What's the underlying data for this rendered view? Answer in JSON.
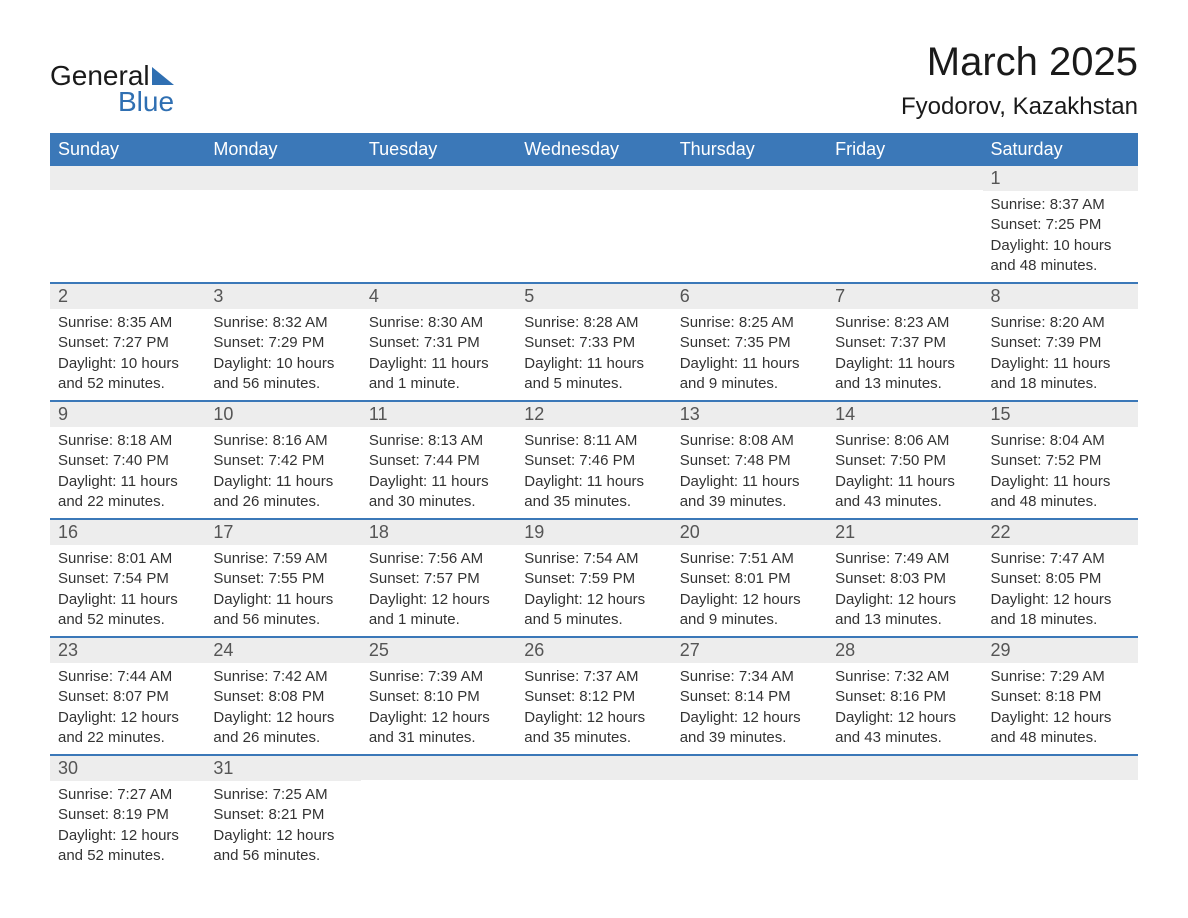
{
  "logo": {
    "text_general": "General",
    "text_blue": "Blue",
    "mark_color": "#2f6fb2"
  },
  "title": {
    "month": "March 2025",
    "location": "Fyodorov, Kazakhstan"
  },
  "colors": {
    "header_bg": "#3b78b8",
    "header_text": "#ffffff",
    "row_divider": "#3b78b8",
    "daynum_bg": "#ededed",
    "daynum_text": "#555555",
    "body_text": "#333333",
    "page_bg": "#ffffff"
  },
  "fonts": {
    "family": "Arial, Helvetica, sans-serif",
    "month_title_size_pt": 30,
    "location_size_pt": 18,
    "weekday_size_pt": 14,
    "daynum_size_pt": 14,
    "body_size_pt": 11
  },
  "weekdays": [
    "Sunday",
    "Monday",
    "Tuesday",
    "Wednesday",
    "Thursday",
    "Friday",
    "Saturday"
  ],
  "weeks": [
    [
      {
        "day": "",
        "lines": []
      },
      {
        "day": "",
        "lines": []
      },
      {
        "day": "",
        "lines": []
      },
      {
        "day": "",
        "lines": []
      },
      {
        "day": "",
        "lines": []
      },
      {
        "day": "",
        "lines": []
      },
      {
        "day": "1",
        "lines": [
          "Sunrise: 8:37 AM",
          "Sunset: 7:25 PM",
          "Daylight: 10 hours and 48 minutes."
        ]
      }
    ],
    [
      {
        "day": "2",
        "lines": [
          "Sunrise: 8:35 AM",
          "Sunset: 7:27 PM",
          "Daylight: 10 hours and 52 minutes."
        ]
      },
      {
        "day": "3",
        "lines": [
          "Sunrise: 8:32 AM",
          "Sunset: 7:29 PM",
          "Daylight: 10 hours and 56 minutes."
        ]
      },
      {
        "day": "4",
        "lines": [
          "Sunrise: 8:30 AM",
          "Sunset: 7:31 PM",
          "Daylight: 11 hours and 1 minute."
        ]
      },
      {
        "day": "5",
        "lines": [
          "Sunrise: 8:28 AM",
          "Sunset: 7:33 PM",
          "Daylight: 11 hours and 5 minutes."
        ]
      },
      {
        "day": "6",
        "lines": [
          "Sunrise: 8:25 AM",
          "Sunset: 7:35 PM",
          "Daylight: 11 hours and 9 minutes."
        ]
      },
      {
        "day": "7",
        "lines": [
          "Sunrise: 8:23 AM",
          "Sunset: 7:37 PM",
          "Daylight: 11 hours and 13 minutes."
        ]
      },
      {
        "day": "8",
        "lines": [
          "Sunrise: 8:20 AM",
          "Sunset: 7:39 PM",
          "Daylight: 11 hours and 18 minutes."
        ]
      }
    ],
    [
      {
        "day": "9",
        "lines": [
          "Sunrise: 8:18 AM",
          "Sunset: 7:40 PM",
          "Daylight: 11 hours and 22 minutes."
        ]
      },
      {
        "day": "10",
        "lines": [
          "Sunrise: 8:16 AM",
          "Sunset: 7:42 PM",
          "Daylight: 11 hours and 26 minutes."
        ]
      },
      {
        "day": "11",
        "lines": [
          "Sunrise: 8:13 AM",
          "Sunset: 7:44 PM",
          "Daylight: 11 hours and 30 minutes."
        ]
      },
      {
        "day": "12",
        "lines": [
          "Sunrise: 8:11 AM",
          "Sunset: 7:46 PM",
          "Daylight: 11 hours and 35 minutes."
        ]
      },
      {
        "day": "13",
        "lines": [
          "Sunrise: 8:08 AM",
          "Sunset: 7:48 PM",
          "Daylight: 11 hours and 39 minutes."
        ]
      },
      {
        "day": "14",
        "lines": [
          "Sunrise: 8:06 AM",
          "Sunset: 7:50 PM",
          "Daylight: 11 hours and 43 minutes."
        ]
      },
      {
        "day": "15",
        "lines": [
          "Sunrise: 8:04 AM",
          "Sunset: 7:52 PM",
          "Daylight: 11 hours and 48 minutes."
        ]
      }
    ],
    [
      {
        "day": "16",
        "lines": [
          "Sunrise: 8:01 AM",
          "Sunset: 7:54 PM",
          "Daylight: 11 hours and 52 minutes."
        ]
      },
      {
        "day": "17",
        "lines": [
          "Sunrise: 7:59 AM",
          "Sunset: 7:55 PM",
          "Daylight: 11 hours and 56 minutes."
        ]
      },
      {
        "day": "18",
        "lines": [
          "Sunrise: 7:56 AM",
          "Sunset: 7:57 PM",
          "Daylight: 12 hours and 1 minute."
        ]
      },
      {
        "day": "19",
        "lines": [
          "Sunrise: 7:54 AM",
          "Sunset: 7:59 PM",
          "Daylight: 12 hours and 5 minutes."
        ]
      },
      {
        "day": "20",
        "lines": [
          "Sunrise: 7:51 AM",
          "Sunset: 8:01 PM",
          "Daylight: 12 hours and 9 minutes."
        ]
      },
      {
        "day": "21",
        "lines": [
          "Sunrise: 7:49 AM",
          "Sunset: 8:03 PM",
          "Daylight: 12 hours and 13 minutes."
        ]
      },
      {
        "day": "22",
        "lines": [
          "Sunrise: 7:47 AM",
          "Sunset: 8:05 PM",
          "Daylight: 12 hours and 18 minutes."
        ]
      }
    ],
    [
      {
        "day": "23",
        "lines": [
          "Sunrise: 7:44 AM",
          "Sunset: 8:07 PM",
          "Daylight: 12 hours and 22 minutes."
        ]
      },
      {
        "day": "24",
        "lines": [
          "Sunrise: 7:42 AM",
          "Sunset: 8:08 PM",
          "Daylight: 12 hours and 26 minutes."
        ]
      },
      {
        "day": "25",
        "lines": [
          "Sunrise: 7:39 AM",
          "Sunset: 8:10 PM",
          "Daylight: 12 hours and 31 minutes."
        ]
      },
      {
        "day": "26",
        "lines": [
          "Sunrise: 7:37 AM",
          "Sunset: 8:12 PM",
          "Daylight: 12 hours and 35 minutes."
        ]
      },
      {
        "day": "27",
        "lines": [
          "Sunrise: 7:34 AM",
          "Sunset: 8:14 PM",
          "Daylight: 12 hours and 39 minutes."
        ]
      },
      {
        "day": "28",
        "lines": [
          "Sunrise: 7:32 AM",
          "Sunset: 8:16 PM",
          "Daylight: 12 hours and 43 minutes."
        ]
      },
      {
        "day": "29",
        "lines": [
          "Sunrise: 7:29 AM",
          "Sunset: 8:18 PM",
          "Daylight: 12 hours and 48 minutes."
        ]
      }
    ],
    [
      {
        "day": "30",
        "lines": [
          "Sunrise: 7:27 AM",
          "Sunset: 8:19 PM",
          "Daylight: 12 hours and 52 minutes."
        ]
      },
      {
        "day": "31",
        "lines": [
          "Sunrise: 7:25 AM",
          "Sunset: 8:21 PM",
          "Daylight: 12 hours and 56 minutes."
        ]
      },
      {
        "day": "",
        "lines": []
      },
      {
        "day": "",
        "lines": []
      },
      {
        "day": "",
        "lines": []
      },
      {
        "day": "",
        "lines": []
      },
      {
        "day": "",
        "lines": []
      }
    ]
  ]
}
